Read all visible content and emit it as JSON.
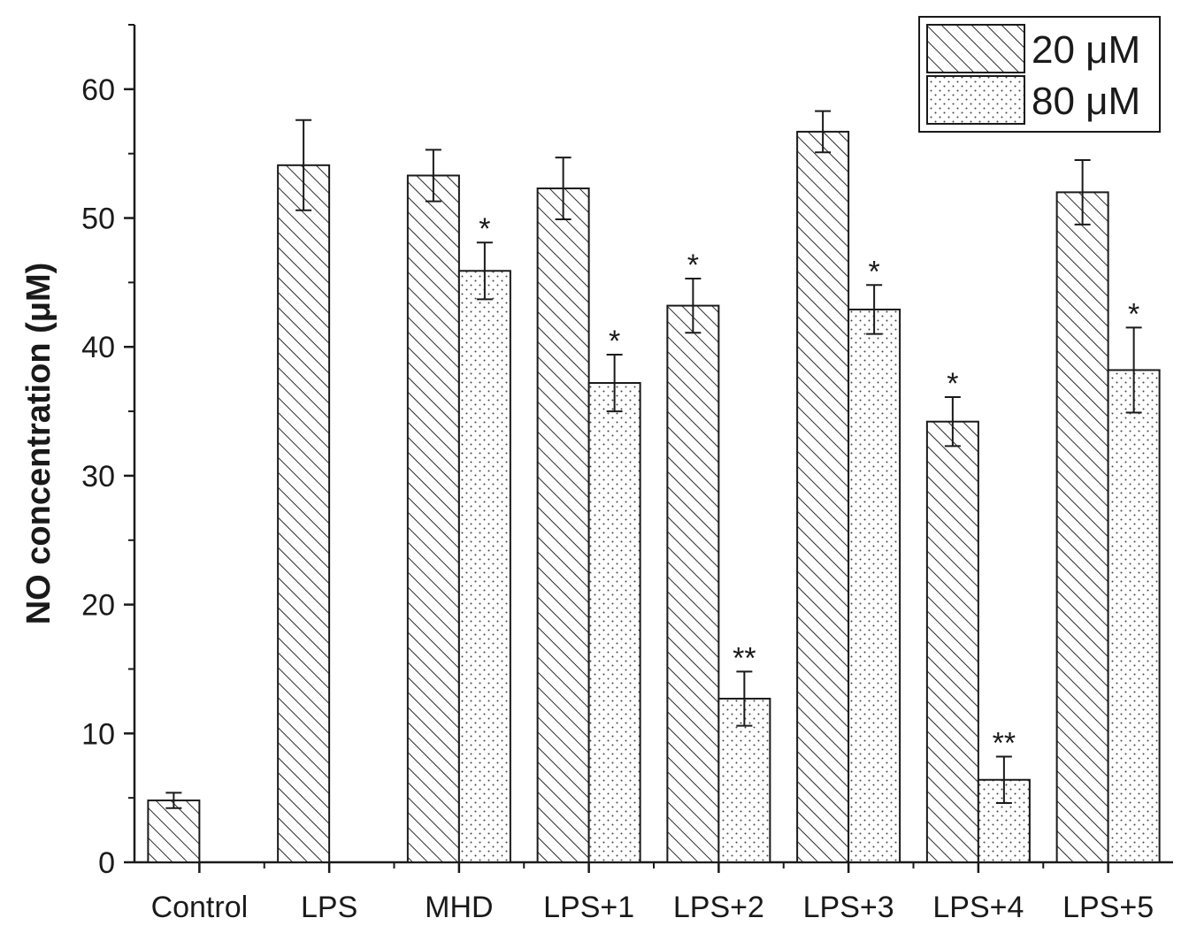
{
  "chart_data": {
    "type": "bar",
    "title": "",
    "xlabel": "",
    "ylabel": "NO concentration (μM)",
    "ylim": [
      0,
      65
    ],
    "yticks": [
      0,
      10,
      20,
      30,
      40,
      50,
      60
    ],
    "grid": false,
    "legend_position": "top-right",
    "categories": [
      "Control",
      "LPS",
      "MHD",
      "LPS+1",
      "LPS+2",
      "LPS+3",
      "LPS+4",
      "LPS+5"
    ],
    "series": [
      {
        "name": "20 μM",
        "pattern": "diagonal-hatch",
        "values": [
          4.8,
          54.1,
          53.3,
          52.3,
          43.2,
          56.7,
          34.2,
          52.0
        ],
        "errors": [
          0.6,
          3.5,
          2.0,
          2.4,
          2.1,
          1.6,
          1.9,
          2.5
        ],
        "significance": [
          "",
          "",
          "",
          "",
          "*",
          "",
          "*",
          ""
        ]
      },
      {
        "name": "80 μM",
        "pattern": "dots",
        "values": [
          null,
          null,
          45.9,
          37.2,
          12.7,
          42.9,
          6.4,
          38.2
        ],
        "errors": [
          null,
          null,
          2.2,
          2.2,
          2.1,
          1.9,
          1.8,
          3.3
        ],
        "significance": [
          "",
          "",
          "*",
          "*",
          "**",
          "*",
          "**",
          "*"
        ]
      }
    ],
    "colors": {
      "axis": "#1a1a1a",
      "bar_fill": "#ffffff",
      "pattern": "#2a2a2a"
    }
  }
}
